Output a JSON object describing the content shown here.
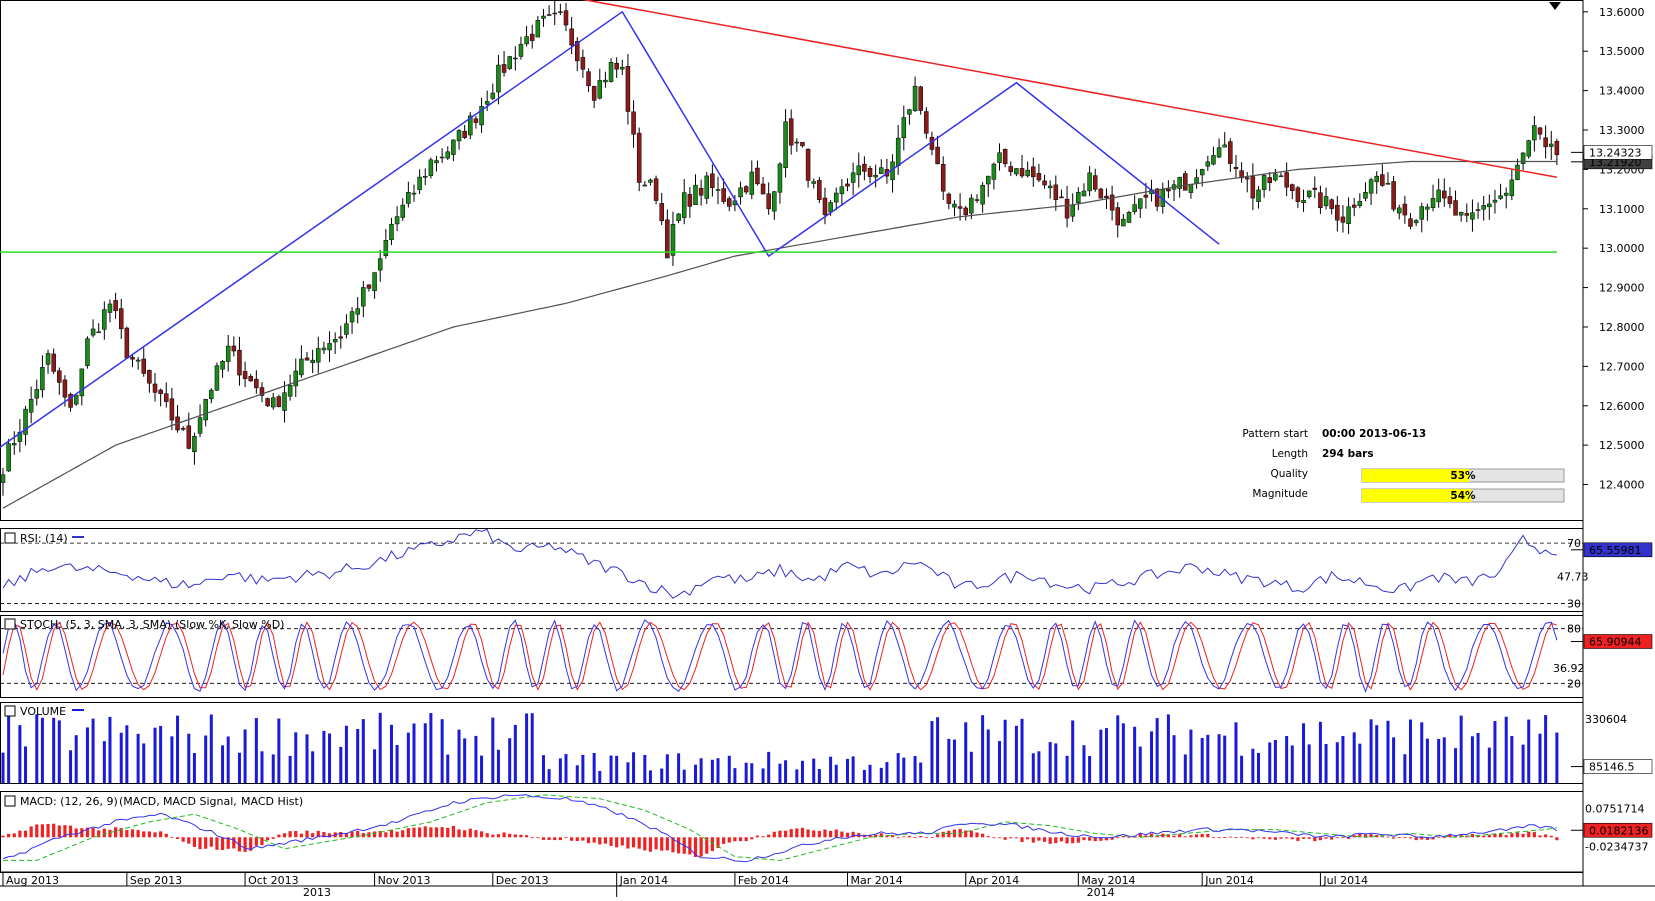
{
  "chart_data": {
    "type": "candlestick",
    "instrument_style": "price chart with pattern overlay",
    "months": [
      "Aug 2013",
      "Sep 2013",
      "Oct 2013",
      "Nov 2013",
      "Dec 2013",
      "Jan 2014",
      "Feb 2014",
      "Mar 2014",
      "Apr 2014",
      "May 2014",
      "Jun 2014",
      "Jul 2014"
    ],
    "years": [
      "2013",
      "2014"
    ],
    "price_axis": {
      "ticks": [
        "13.6000",
        "13.5000",
        "13.4000",
        "13.3000",
        "13.2000",
        "13.1000",
        "13.0000",
        "12.9000",
        "12.8000",
        "12.7000",
        "12.6000",
        "12.5000",
        "12.4000"
      ],
      "tick_values": [
        13.6,
        13.5,
        13.4,
        13.3,
        13.2,
        13.1,
        13.0,
        12.9,
        12.8,
        12.7,
        12.6,
        12.5,
        12.4
      ],
      "ylim": [
        12.31,
        13.63
      ],
      "last_price_label": "13.24323",
      "ma_label": "13.21920",
      "last_price": 13.24323,
      "ma_value": 13.2192
    },
    "close_anchors": [
      [
        0,
        12.45
      ],
      [
        4,
        12.58
      ],
      [
        8,
        12.72
      ],
      [
        12,
        12.58
      ],
      [
        15,
        12.76
      ],
      [
        19,
        12.86
      ],
      [
        22,
        12.74
      ],
      [
        26,
        12.65
      ],
      [
        30,
        12.57
      ],
      [
        33,
        12.5
      ],
      [
        36,
        12.62
      ],
      [
        40,
        12.74
      ],
      [
        44,
        12.66
      ],
      [
        48,
        12.6
      ],
      [
        52,
        12.68
      ],
      [
        56,
        12.75
      ],
      [
        60,
        12.78
      ],
      [
        63,
        12.86
      ],
      [
        66,
        12.92
      ],
      [
        69,
        13.06
      ],
      [
        72,
        13.12
      ],
      [
        76,
        13.22
      ],
      [
        80,
        13.26
      ],
      [
        84,
        13.34
      ],
      [
        88,
        13.44
      ],
      [
        92,
        13.52
      ],
      [
        96,
        13.57
      ],
      [
        99,
        13.58
      ],
      [
        102,
        13.5
      ],
      [
        105,
        13.4
      ],
      [
        108,
        13.46
      ],
      [
        110,
        13.45
      ],
      [
        113,
        13.18
      ],
      [
        116,
        13.14
      ],
      [
        118,
        13.0
      ],
      [
        121,
        13.12
      ],
      [
        125,
        13.16
      ],
      [
        129,
        13.12
      ],
      [
        133,
        13.18
      ],
      [
        136,
        13.1
      ],
      [
        139,
        13.3
      ],
      [
        142,
        13.24
      ],
      [
        146,
        13.06
      ],
      [
        149,
        13.16
      ],
      [
        153,
        13.2
      ],
      [
        157,
        13.18
      ],
      [
        160,
        13.32
      ],
      [
        162,
        13.4
      ],
      [
        165,
        13.26
      ],
      [
        167,
        13.12
      ],
      [
        170,
        13.08
      ],
      [
        174,
        13.16
      ],
      [
        177,
        13.22
      ],
      [
        181,
        13.2
      ],
      [
        185,
        13.16
      ],
      [
        189,
        13.1
      ],
      [
        193,
        13.18
      ],
      [
        196,
        13.12
      ],
      [
        199,
        13.06
      ],
      [
        203,
        13.12
      ],
      [
        207,
        13.14
      ],
      [
        211,
        13.18
      ],
      [
        215,
        13.26
      ],
      [
        219,
        13.22
      ],
      [
        222,
        13.14
      ],
      [
        226,
        13.18
      ],
      [
        230,
        13.14
      ],
      [
        234,
        13.12
      ],
      [
        238,
        13.08
      ],
      [
        241,
        13.14
      ],
      [
        244,
        13.18
      ],
      [
        247,
        13.12
      ],
      [
        250,
        13.08
      ],
      [
        254,
        13.14
      ],
      [
        257,
        13.1
      ],
      [
        260,
        13.06
      ],
      [
        264,
        13.12
      ],
      [
        267,
        13.14
      ],
      [
        269,
        13.2
      ],
      [
        272,
        13.3
      ],
      [
        274,
        13.24
      ],
      [
        276,
        13.24
      ]
    ],
    "ma200_anchors": [
      [
        0,
        12.34
      ],
      [
        20,
        12.5
      ],
      [
        40,
        12.6
      ],
      [
        60,
        12.7
      ],
      [
        80,
        12.8
      ],
      [
        100,
        12.86
      ],
      [
        118,
        12.93
      ],
      [
        130,
        12.98
      ],
      [
        150,
        13.03
      ],
      [
        170,
        13.08
      ],
      [
        190,
        13.11
      ],
      [
        210,
        13.16
      ],
      [
        230,
        13.2
      ],
      [
        250,
        13.22
      ],
      [
        276,
        13.22
      ]
    ],
    "pattern_lines": [
      {
        "kind": "zigzag",
        "color": "#3333ee",
        "points": [
          [
            -2,
            12.48
          ],
          [
            110,
            13.6
          ],
          [
            136,
            12.98
          ],
          [
            180,
            13.42
          ],
          [
            216,
            13.01
          ]
        ]
      },
      {
        "kind": "resistance",
        "color": "#ee2222",
        "points": [
          [
            92,
            13.66
          ],
          [
            276,
            13.18
          ]
        ]
      },
      {
        "kind": "support",
        "color": "#22dd22",
        "points": [
          [
            -10,
            12.99
          ],
          [
            276,
            12.99
          ]
        ]
      }
    ],
    "pattern_info": {
      "pattern_start_label": "Pattern start",
      "pattern_start": "00:00 2013-06-13",
      "length_label": "Length",
      "length": "294 bars",
      "quality_label": "Quality",
      "quality": "53%",
      "quality_value": 53,
      "magnitude_label": "Magnitude",
      "magnitude": "54%",
      "magnitude_value": 54
    },
    "rsi": {
      "title": "RSI: (14)",
      "levels": [
        "70",
        "47.73",
        "30"
      ],
      "level_values": [
        70,
        47.73,
        30
      ],
      "last_label": "65.55981",
      "last": 65.55981,
      "ylim": [
        25,
        80
      ],
      "anchors": [
        [
          0,
          40
        ],
        [
          8,
          55
        ],
        [
          15,
          52
        ],
        [
          22,
          50
        ],
        [
          28,
          44
        ],
        [
          34,
          42
        ],
        [
          40,
          50
        ],
        [
          46,
          45
        ],
        [
          52,
          48
        ],
        [
          58,
          50
        ],
        [
          64,
          55
        ],
        [
          70,
          62
        ],
        [
          76,
          68
        ],
        [
          82,
          75
        ],
        [
          86,
          78
        ],
        [
          88,
          70
        ],
        [
          92,
          65
        ],
        [
          98,
          68
        ],
        [
          104,
          58
        ],
        [
          110,
          50
        ],
        [
          116,
          40
        ],
        [
          120,
          35
        ],
        [
          126,
          48
        ],
        [
          132,
          45
        ],
        [
          138,
          52
        ],
        [
          144,
          45
        ],
        [
          150,
          55
        ],
        [
          156,
          48
        ],
        [
          162,
          58
        ],
        [
          166,
          50
        ],
        [
          170,
          40
        ],
        [
          176,
          45
        ],
        [
          182,
          50
        ],
        [
          188,
          42
        ],
        [
          194,
          40
        ],
        [
          200,
          45
        ],
        [
          206,
          50
        ],
        [
          212,
          55
        ],
        [
          218,
          48
        ],
        [
          224,
          45
        ],
        [
          230,
          40
        ],
        [
          236,
          48
        ],
        [
          242,
          44
        ],
        [
          248,
          38
        ],
        [
          254,
          48
        ],
        [
          260,
          44
        ],
        [
          266,
          50
        ],
        [
          270,
          72
        ],
        [
          273,
          66
        ],
        [
          276,
          66
        ]
      ]
    },
    "stoch": {
      "title": "STOCH: (5, 3, SMA, 3, SMA)",
      "slow_k_label": "(Slow %K,",
      "slow_d_label": "Slow %D)",
      "levels": [
        "80",
        "36.92",
        "20"
      ],
      "level_values": [
        80,
        36.92,
        20
      ],
      "last_label": "65.90944",
      "last": 65.90944,
      "ylim": [
        5,
        95
      ]
    },
    "volume": {
      "title": "VOLUME",
      "levels": [
        "330604"
      ],
      "level_values": [
        330604
      ],
      "last_label": "85146.5",
      "last": 85146.5,
      "ylim": [
        0,
        420000
      ]
    },
    "macd": {
      "title": "MACD: (12, 26, 9)",
      "macd_label": "(MACD,",
      "signal_label": "MACD Signal,",
      "hist_label": "MACD Hist)",
      "levels": [
        "0.0751714",
        "-0.0234737"
      ],
      "level_values": [
        0.0751714,
        -0.0234737
      ],
      "last_label": "0.0182136",
      "last": 0.0182136,
      "ylim": [
        -0.09,
        0.12
      ],
      "anchors": [
        [
          0,
          -0.06
        ],
        [
          10,
          0.0
        ],
        [
          20,
          0.04
        ],
        [
          28,
          0.06
        ],
        [
          36,
          0.02
        ],
        [
          44,
          -0.03
        ],
        [
          52,
          -0.01
        ],
        [
          60,
          0.01
        ],
        [
          70,
          0.04
        ],
        [
          80,
          0.09
        ],
        [
          90,
          0.11
        ],
        [
          100,
          0.1
        ],
        [
          108,
          0.07
        ],
        [
          116,
          0.02
        ],
        [
          124,
          -0.05
        ],
        [
          132,
          -0.06
        ],
        [
          140,
          -0.03
        ],
        [
          148,
          0.0
        ],
        [
          156,
          0.01
        ],
        [
          164,
          0.01
        ],
        [
          172,
          0.04
        ],
        [
          180,
          0.03
        ],
        [
          188,
          0.01
        ],
        [
          196,
          0.0
        ],
        [
          204,
          0.01
        ],
        [
          212,
          0.02
        ],
        [
          220,
          0.02
        ],
        [
          228,
          0.01
        ],
        [
          236,
          0.0
        ],
        [
          244,
          0.01
        ],
        [
          252,
          0.0
        ],
        [
          260,
          0.01
        ],
        [
          268,
          0.02
        ],
        [
          272,
          0.03
        ],
        [
          276,
          0.02
        ]
      ]
    },
    "colors": {
      "up_candle": "#1a8a1a",
      "down_candle": "#8b1a1a",
      "ma200": "#505050",
      "rsi_line": "#3333cc",
      "stoch_k": "#3333ee",
      "stoch_d": "#ee2222",
      "volume_bar": "#1a1ad8",
      "macd_line": "#3333ee",
      "macd_signal": "#22bb22",
      "macd_hist": "#ee2222",
      "quality_bar": "#ffff00"
    }
  }
}
